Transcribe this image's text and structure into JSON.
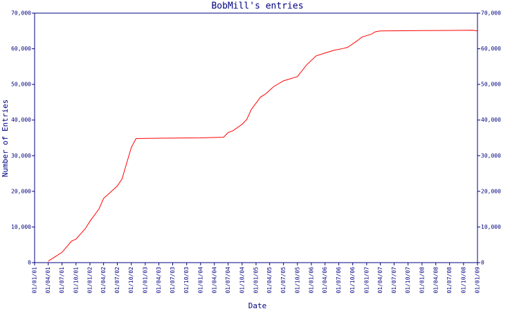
{
  "chart_data": {
    "type": "line",
    "title": "BobMill's entries",
    "x_label": "Date",
    "y_label": "Number of Entries",
    "x": [
      "2001-04-01",
      "2001-07-01",
      "2001-09-01",
      "2001-10-01",
      "2001-12-01",
      "2002-01-01",
      "2002-03-01",
      "2002-04-01",
      "2002-07-01",
      "2002-08-01",
      "2002-10-01",
      "2002-11-01",
      "2003-04-01",
      "2004-01-01",
      "2004-06-01",
      "2004-07-01",
      "2004-08-01",
      "2004-10-01",
      "2004-11-01",
      "2004-12-01",
      "2005-02-01",
      "2005-03-01",
      "2005-05-01",
      "2005-07-01",
      "2005-10-01",
      "2005-12-01",
      "2006-02-01",
      "2006-04-01",
      "2006-06-01",
      "2006-08-01",
      "2006-09-01",
      "2006-11-01",
      "2006-12-01",
      "2007-02-01",
      "2007-03-01",
      "2007-04-01",
      "2008-01-01",
      "2008-12-01",
      "2009-01-01"
    ],
    "series": [
      {
        "name": "BobMill",
        "color": "#ff0000",
        "values": [
          400,
          2900,
          6000,
          6600,
          9500,
          11600,
          15000,
          18000,
          21500,
          23500,
          32300,
          34800,
          34900,
          35000,
          35200,
          36500,
          37000,
          38800,
          40200,
          43000,
          46500,
          47200,
          49500,
          51000,
          52200,
          55500,
          58000,
          58800,
          59600,
          60100,
          60500,
          62300,
          63300,
          64100,
          64800,
          65000,
          65100,
          65200,
          65000
        ]
      }
    ],
    "xlim": [
      "2001-01-01",
      "2009-01-01"
    ],
    "xticks": [
      {
        "value": "2001-01-01",
        "label": "01/01/01"
      },
      {
        "value": "2001-04-01",
        "label": "01/04/01"
      },
      {
        "value": "2001-07-01",
        "label": "01/07/01"
      },
      {
        "value": "2001-10-01",
        "label": "01/10/01"
      },
      {
        "value": "2002-01-01",
        "label": "01/01/02"
      },
      {
        "value": "2002-04-01",
        "label": "01/04/02"
      },
      {
        "value": "2002-07-01",
        "label": "01/07/02"
      },
      {
        "value": "2002-10-01",
        "label": "01/10/02"
      },
      {
        "value": "2003-01-01",
        "label": "01/01/03"
      },
      {
        "value": "2003-04-01",
        "label": "01/04/03"
      },
      {
        "value": "2003-07-01",
        "label": "01/07/03"
      },
      {
        "value": "2003-10-01",
        "label": "01/10/03"
      },
      {
        "value": "2004-01-01",
        "label": "01/01/04"
      },
      {
        "value": "2004-04-01",
        "label": "01/04/04"
      },
      {
        "value": "2004-07-01",
        "label": "01/07/04"
      },
      {
        "value": "2004-10-01",
        "label": "01/10/04"
      },
      {
        "value": "2005-01-01",
        "label": "01/01/05"
      },
      {
        "value": "2005-04-01",
        "label": "01/04/05"
      },
      {
        "value": "2005-07-01",
        "label": "01/07/05"
      },
      {
        "value": "2005-10-01",
        "label": "01/10/05"
      },
      {
        "value": "2006-01-01",
        "label": "01/01/06"
      },
      {
        "value": "2006-04-01",
        "label": "01/04/06"
      },
      {
        "value": "2006-07-01",
        "label": "01/07/06"
      },
      {
        "value": "2006-10-01",
        "label": "01/10/06"
      },
      {
        "value": "2007-01-01",
        "label": "01/01/07"
      },
      {
        "value": "2007-04-01",
        "label": "01/04/07"
      },
      {
        "value": "2007-07-01",
        "label": "01/07/07"
      },
      {
        "value": "2007-10-01",
        "label": "01/10/07"
      },
      {
        "value": "2008-01-01",
        "label": "01/01/08"
      },
      {
        "value": "2008-04-01",
        "label": "01/04/08"
      },
      {
        "value": "2008-07-01",
        "label": "01/07/08"
      },
      {
        "value": "2008-10-01",
        "label": "01/10/08"
      },
      {
        "value": "2009-01-01",
        "label": "01/01/09"
      }
    ],
    "ylim": [
      0,
      70000
    ],
    "yticks": [
      0,
      {
        "value": 10000,
        "label": "10,000"
      },
      {
        "value": 20000,
        "label": "20,000"
      },
      {
        "value": 30000,
        "label": "30,000"
      },
      {
        "value": 40000,
        "label": "40,000"
      },
      {
        "value": 50000,
        "label": "50,000"
      },
      {
        "value": 60000,
        "label": "60,000"
      },
      {
        "value": 70000,
        "label": "70,000"
      }
    ],
    "y2lim": [
      0,
      70000
    ],
    "y2ticks": [
      0,
      {
        "value": 10000,
        "label": "10,000"
      },
      {
        "value": 20000,
        "label": "20,000"
      },
      {
        "value": 30000,
        "label": "30,000"
      },
      {
        "value": 40000,
        "label": "40,000"
      },
      {
        "value": 50000,
        "label": "50,000"
      },
      {
        "value": 60000,
        "label": "60,000"
      },
      {
        "value": 70000,
        "label": "70,000"
      }
    ],
    "axis_color": "#000080",
    "grid": false
  }
}
